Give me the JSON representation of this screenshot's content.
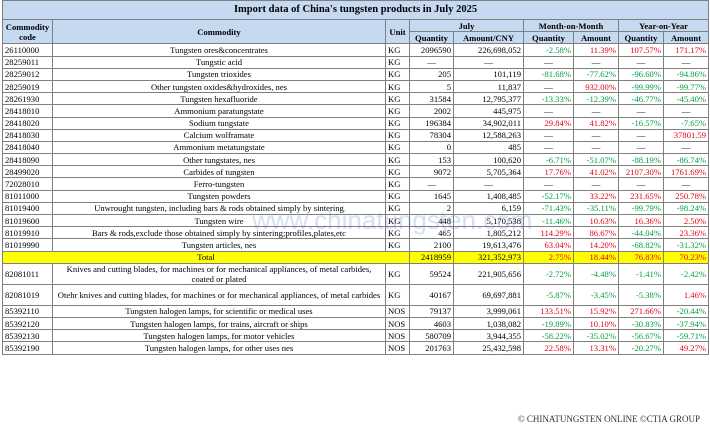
{
  "header": {
    "title": "Import data of China's tungsten products in July 2025",
    "columns": [
      "Commodity code",
      "Commodity",
      "Unit"
    ],
    "groups": [
      "July",
      "Month-on-Month",
      "Year-on-Year"
    ],
    "subcolumns": [
      [
        "Quantity",
        "Amount/CNY"
      ],
      [
        "Quantity",
        "Amount"
      ],
      [
        "Quantity",
        "Amount"
      ]
    ]
  },
  "table": {
    "rows": [
      [
        "26110000",
        "Tungsten ores&concentrates",
        "KG",
        "2096590",
        "226,698,052",
        "-2.58%",
        "11.39%",
        "107.57%",
        "171.17%"
      ],
      [
        "28259011",
        "Tungstic acid",
        "KG",
        "—",
        "—",
        "—",
        "—",
        "—",
        "—"
      ],
      [
        "28259012",
        "Tungsten trioxides",
        "KG",
        "205",
        "101,119",
        "-81.68%",
        "-77.62%",
        "-96.60%",
        "-94.86%"
      ],
      [
        "28259019",
        "Other tungsten oxides&hydroxides, nes",
        "KG",
        "5",
        "11,837",
        "—",
        "932.00%",
        "-99.99%",
        "-99.77%"
      ],
      [
        "28261930",
        "Tungsten hexafluoride",
        "KG",
        "31584",
        "12,795,377",
        "-13.33%",
        "-12.39%",
        "-46.77%",
        "-45.40%"
      ],
      [
        "28418010",
        "Ammonium paratungstate",
        "KG",
        "2002",
        "445,975",
        "—",
        "—",
        "—",
        "—"
      ],
      [
        "28418020",
        "Sodium tungstate",
        "KG",
        "196384",
        "34,902,011",
        "29.84%",
        "41.82%",
        "-16.57%",
        "-7.65%"
      ],
      [
        "28418030",
        "Calcium wolframate",
        "KG",
        "78304",
        "12,588,263",
        "—",
        "—",
        "—",
        "37801.59"
      ],
      [
        "28418040",
        "Ammonium metatungstate",
        "KG",
        "0",
        "485",
        "—",
        "—",
        "—",
        "—"
      ],
      [
        "28418090",
        "Other tungstates, nes",
        "KG",
        "153",
        "100,620",
        "-6.71%",
        "-51.07%",
        "-88.19%",
        "-86.74%"
      ],
      [
        "28499020",
        "Carbides of tungsten",
        "KG",
        "9072",
        "5,705,364",
        "17.76%",
        "41.02%",
        "2107.30%",
        "1761.69%"
      ],
      [
        "72028010",
        "Ferro-tungsten",
        "KG",
        "—",
        "—",
        "—",
        "—",
        "—",
        "—"
      ],
      [
        "81011000",
        "Tungsten powders",
        "KG",
        "1645",
        "1,408,485",
        "-52.17%",
        "33.22%",
        "231.65%",
        "250.78%"
      ],
      [
        "81019400",
        "Unwrought tungsten, including bars & rods obtained simply by sintering",
        "KG",
        "2",
        "6,159",
        "-71.43%",
        "-35.11%",
        "-99.79%",
        "-98.24%"
      ],
      [
        "81019600",
        "Tungsten wire",
        "KG",
        "448",
        "5,170,538",
        "-11.46%",
        "10.63%",
        "16.36%",
        "2.50%"
      ],
      [
        "81019910",
        "Bars & rods,exclude those obtained simply by sintering;profiles,plates,etc",
        "KG",
        "465",
        "1,805,212",
        "114.29%",
        "86.67%",
        "-44.04%",
        "23.36%"
      ],
      [
        "81019990",
        "Tungsten articles, nes",
        "KG",
        "2100",
        "19,613,476",
        "63.04%",
        "14.20%",
        "-68.82%",
        "-31.32%"
      ]
    ],
    "total": {
      "label": "Total",
      "values": [
        "2418959",
        "321,352,973",
        "2.75%",
        "18.44%",
        "76.83%",
        "70.23%"
      ]
    },
    "rows_after": [
      [
        "82081011",
        "Knives and cutting blades, for machines or for mechanical appliances, of metal carbides, coated or plated",
        "KG",
        "59524",
        "221,905,656",
        "-2.72%",
        "-4.48%",
        "-1.41%",
        "-2.42%"
      ],
      [
        "82081019",
        "Otehr knives and cutting blades, for machines or for mechanical appliances, of metal carbides",
        "KG",
        "40167",
        "69,697,881",
        "-5.87%",
        "-3.45%",
        "-5.38%",
        "1.46%"
      ],
      [
        "85392110",
        "Tungsten halogen lamps, for scientific or medical uses",
        "NOS",
        "79137",
        "3,999,061",
        "133.51%",
        "15.92%",
        "271.66%",
        "-20.44%"
      ],
      [
        "85392120",
        "Tungsten halogen lamps, for trains, aircraft or ships",
        "NOS",
        "4603",
        "1,038,082",
        "-19.89%",
        "10.10%",
        "-30.83%",
        "-37.94%"
      ],
      [
        "85392130",
        "Tungsten halogen lamps, for motor vehicles",
        "NOS",
        "580709",
        "3,944,355",
        "-58.22%",
        "-35.02%",
        "-56.67%",
        "-59.71%"
      ],
      [
        "85392190",
        "Tungsten halogen lamps, for other uses nes",
        "NOS",
        "201763",
        "25,432,598",
        "22.58%",
        "13.31%",
        "-20.27%",
        "49.27%"
      ]
    ]
  },
  "watermark": "www.chinatungsten.com",
  "footer": "© CHINATUNGSTEN ONLINE ©CTIA GROUP"
}
